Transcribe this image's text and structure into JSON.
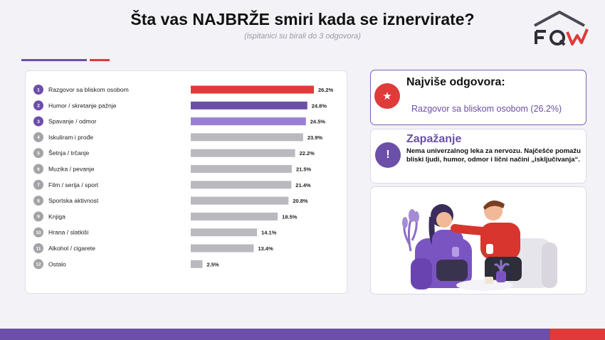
{
  "header": {
    "title": "Šta vas NAJBRŽE smiri kada se iznervirate?",
    "subtitle": "(ispitanici su birali do 3 odgovora)"
  },
  "colors": {
    "purple": "#6b4fa8",
    "light_purple": "#9b7fd4",
    "red": "#e03a3a",
    "gray": "#b9b9be",
    "background": "#f3f2f6"
  },
  "logo": {
    "icon": "house-logo-icon"
  },
  "highlight": {
    "icon": "star-icon",
    "heading": "Najviše odgovora:",
    "value": "Razgovor sa bliskom osobom (26.2%)"
  },
  "insight": {
    "icon": "exclamation-icon",
    "heading": "Zapažanje",
    "text": "Nema univerzalnog leka za nervozu. Najčešće pomažu bliski ljudi, humor, odmor i lični načini „isključivanja“."
  },
  "illustration": {
    "icon": "couple-talking-illustration"
  },
  "chart_data": {
    "type": "bar",
    "orientation": "horizontal",
    "categories": [
      "Razgovor sa bliskom osobom",
      "Humor / skretanje pažnje",
      "Spavanje / odmor",
      "Iskuliram i prođe",
      "Šetnja / trčanje",
      "Muzika / pevanje",
      "Film / serija / sport",
      "Sportska aktivnost",
      "Knjiga",
      "Hrana / slatkiši",
      "Alkohol / cigarete",
      "Ostalo"
    ],
    "ranks": [
      "1",
      "2",
      "3",
      "4",
      "5",
      "6",
      "7",
      "8",
      "9",
      "10",
      "11",
      "12"
    ],
    "values": [
      26.2,
      24.8,
      24.5,
      23.9,
      22.2,
      21.5,
      21.4,
      20.8,
      18.5,
      14.1,
      13.4,
      2.5
    ],
    "value_labels": [
      "26.2%",
      "24.8%",
      "24.5%",
      "23.9%",
      "22.2%",
      "21.5%",
      "21.4%",
      "20.8%",
      "18.5%",
      "14.1%",
      "13.4%",
      "2.5%"
    ],
    "bar_colors": [
      "#e03a3a",
      "#6b4fa8",
      "#9b7fd4",
      "#b9b9be",
      "#b9b9be",
      "#b9b9be",
      "#b9b9be",
      "#b9b9be",
      "#b9b9be",
      "#b9b9be",
      "#b9b9be",
      "#b9b9be"
    ],
    "rank_colors": [
      "#6b4fa8",
      "#6b4fa8",
      "#6b4fa8",
      "#a3a3a8",
      "#a3a3a8",
      "#a3a3a8",
      "#a3a3a8",
      "#a3a3a8",
      "#a3a3a8",
      "#a3a3a8",
      "#a3a3a8",
      "#a3a3a8"
    ],
    "xlim": [
      0,
      26.2
    ],
    "grid": false,
    "legend": "none"
  }
}
